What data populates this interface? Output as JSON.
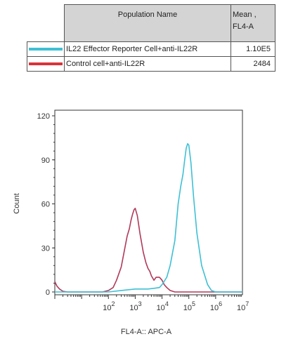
{
  "legend": {
    "header_name": "Population Name",
    "header_mean": "Mean ,",
    "header_mean_param": "FL4-A",
    "rows": [
      {
        "label": "IL22 Effector Reporter Cell+anti-IL22R",
        "mean": "1.10E5",
        "color": "#3ec0d4"
      },
      {
        "label": "Control cell+anti-IL22R",
        "mean": "2484",
        "color": "#d9343a"
      }
    ]
  },
  "chart_data": {
    "type": "line",
    "title": "",
    "xlabel": "FL4-A:: APC-A",
    "ylabel": "Count",
    "xscale": "log",
    "xlim": [
      1,
      10000000
    ],
    "ylim": [
      0,
      120
    ],
    "yticks": [
      0,
      30,
      60,
      90,
      120
    ],
    "xtick_labels": [
      {
        "base": "10",
        "exp": "2",
        "x": 100
      },
      {
        "base": "10",
        "exp": "3",
        "x": 1000
      },
      {
        "base": "10",
        "exp": "4",
        "x": 10000
      },
      {
        "base": "10",
        "exp": "5",
        "x": 100000
      },
      {
        "base": "10",
        "exp": "6",
        "x": 1000000
      },
      {
        "base": "10",
        "exp": "7",
        "x": 10000000
      }
    ],
    "grid": false,
    "series": [
      {
        "name": "Control cell+anti-IL22R",
        "color": "#b03a5a",
        "x": [
          1,
          1.2,
          1.5,
          2,
          3,
          5,
          8,
          15,
          30,
          60,
          100,
          150,
          200,
          300,
          400,
          500,
          600,
          700,
          800,
          900,
          1000,
          1200,
          1500,
          2000,
          2500,
          3000,
          3500,
          4000,
          5000,
          6000,
          7000,
          8000,
          9000,
          10000,
          12000,
          15000,
          20000,
          30000,
          50000,
          100000,
          1000000,
          10000000
        ],
        "y": [
          7,
          4,
          2,
          0.5,
          0,
          0,
          0,
          0,
          0,
          0,
          1,
          3,
          8,
          17,
          29,
          38,
          43,
          49,
          53,
          56,
          57,
          52,
          40,
          27,
          20,
          16,
          14,
          11,
          8,
          10,
          10,
          10,
          9,
          8,
          5,
          3,
          1,
          0,
          0,
          0,
          0,
          0
        ]
      },
      {
        "name": "IL22 Effector Reporter Cell+anti-IL22R",
        "color": "#3ec0d4",
        "x": [
          1,
          100,
          300,
          1000,
          3000,
          5000,
          8000,
          10000,
          15000,
          20000,
          30000,
          40000,
          50000,
          60000,
          70000,
          80000,
          90000,
          100000,
          120000,
          150000,
          200000,
          300000,
          500000,
          700000,
          1000000,
          2000000,
          10000000
        ],
        "y": [
          0,
          0,
          1,
          2,
          2,
          2.5,
          3,
          5,
          10,
          18,
          35,
          60,
          72,
          80,
          90,
          98,
          101,
          100,
          88,
          65,
          40,
          18,
          5,
          1,
          0,
          0,
          0
        ]
      }
    ]
  }
}
